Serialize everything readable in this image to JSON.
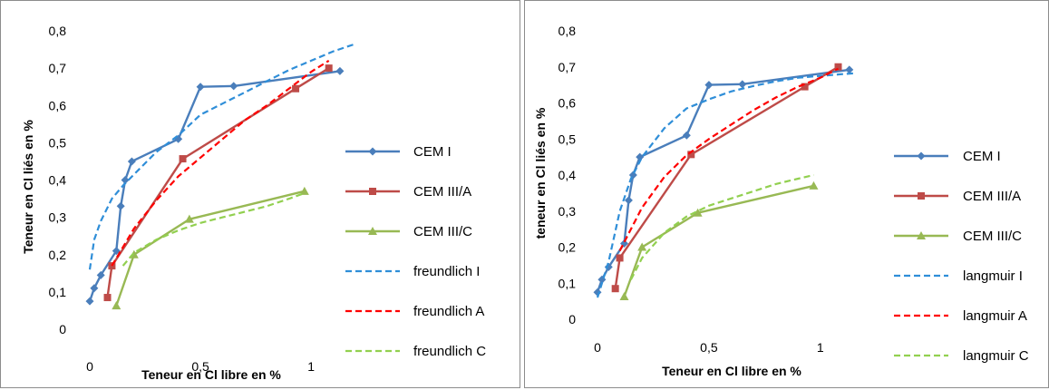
{
  "chart_data": [
    {
      "type": "line",
      "xlabel": "Teneur en Cl libre en %",
      "ylabel": "Teneur en Cl liés en %",
      "xlim": [
        0,
        1.2
      ],
      "ylim": [
        0,
        0.8
      ],
      "x_ticks": [
        "0",
        "0,5",
        "1"
      ],
      "y_ticks": [
        "0",
        "0,1",
        "0,2",
        "0,3",
        "0,4",
        "0,5",
        "0,6",
        "0,7",
        "0,8"
      ],
      "grid": false,
      "legend_position": "right",
      "series": [
        {
          "name": "CEM I",
          "color": "#4a7ebb",
          "style": "solid",
          "marker": "diamond",
          "x": [
            0.0,
            0.02,
            0.05,
            0.12,
            0.14,
            0.16,
            0.19,
            0.4,
            0.5,
            0.65,
            1.13
          ],
          "y": [
            0.075,
            0.11,
            0.145,
            0.21,
            0.33,
            0.4,
            0.45,
            0.51,
            0.65,
            0.652,
            0.692
          ]
        },
        {
          "name": "CEM III/A",
          "color": "#be4b48",
          "style": "solid",
          "marker": "square",
          "x": [
            0.08,
            0.1,
            0.42,
            0.93,
            1.08
          ],
          "y": [
            0.085,
            0.17,
            0.457,
            0.645,
            0.7
          ]
        },
        {
          "name": "CEM III/C",
          "color": "#98b954",
          "style": "solid",
          "marker": "triangle",
          "x": [
            0.12,
            0.2,
            0.45,
            0.97
          ],
          "y": [
            0.063,
            0.2,
            0.295,
            0.37
          ]
        },
        {
          "name": "freundlich I",
          "color": "#2f8ed8",
          "style": "dashed",
          "marker": "none",
          "x": [
            0.0,
            0.02,
            0.05,
            0.1,
            0.15,
            0.2,
            0.3,
            0.4,
            0.5,
            0.6,
            0.7,
            0.8,
            0.9,
            1.0,
            1.1,
            1.2
          ],
          "y": [
            0.16,
            0.24,
            0.29,
            0.35,
            0.385,
            0.415,
            0.475,
            0.52,
            0.575,
            0.605,
            0.635,
            0.665,
            0.695,
            0.72,
            0.745,
            0.765
          ]
        },
        {
          "name": "freundlich A",
          "color": "#ff0000",
          "style": "dashed",
          "marker": "none",
          "x": [
            0.1,
            0.15,
            0.2,
            0.3,
            0.4,
            0.5,
            0.6,
            0.7,
            0.8,
            0.9,
            1.0,
            1.08
          ],
          "y": [
            0.17,
            0.22,
            0.27,
            0.345,
            0.41,
            0.46,
            0.51,
            0.56,
            0.6,
            0.645,
            0.69,
            0.72
          ]
        },
        {
          "name": "freundlich C",
          "color": "#92d050",
          "style": "dashed",
          "marker": "none",
          "x": [
            0.15,
            0.2,
            0.3,
            0.4,
            0.5,
            0.6,
            0.7,
            0.8,
            0.9,
            0.97
          ],
          "y": [
            0.17,
            0.205,
            0.24,
            0.265,
            0.285,
            0.3,
            0.315,
            0.33,
            0.35,
            0.365
          ]
        }
      ]
    },
    {
      "type": "line",
      "xlabel": "Teneur en Cl libre en %",
      "ylabel": "teneur en Cl liés en %",
      "xlim": [
        0,
        1.2
      ],
      "ylim": [
        0,
        0.8
      ],
      "x_ticks": [
        "0",
        "0,5",
        "1"
      ],
      "y_ticks": [
        "0",
        "0,1",
        "0,2",
        "0,3",
        "0,4",
        "0,5",
        "0,6",
        "0,7",
        "0,8"
      ],
      "grid": false,
      "legend_position": "right",
      "series": [
        {
          "name": "CEM I",
          "color": "#4a7ebb",
          "style": "solid",
          "marker": "diamond",
          "x": [
            0.0,
            0.02,
            0.05,
            0.12,
            0.14,
            0.16,
            0.19,
            0.4,
            0.5,
            0.65,
            1.13
          ],
          "y": [
            0.075,
            0.11,
            0.145,
            0.21,
            0.33,
            0.4,
            0.45,
            0.51,
            0.65,
            0.652,
            0.692
          ]
        },
        {
          "name": "CEM III/A",
          "color": "#be4b48",
          "style": "solid",
          "marker": "square",
          "x": [
            0.08,
            0.1,
            0.42,
            0.93,
            1.08
          ],
          "y": [
            0.085,
            0.17,
            0.457,
            0.645,
            0.7
          ]
        },
        {
          "name": "CEM III/C",
          "color": "#98b954",
          "style": "solid",
          "marker": "triangle",
          "x": [
            0.12,
            0.2,
            0.45,
            0.97
          ],
          "y": [
            0.063,
            0.2,
            0.295,
            0.37
          ]
        },
        {
          "name": "langmuir I",
          "color": "#2f8ed8",
          "style": "dashed",
          "marker": "none",
          "x": [
            0.0,
            0.02,
            0.05,
            0.1,
            0.15,
            0.2,
            0.3,
            0.4,
            0.5,
            0.6,
            0.7,
            0.8,
            0.9,
            1.0,
            1.1,
            1.15
          ],
          "y": [
            0.06,
            0.1,
            0.16,
            0.3,
            0.39,
            0.45,
            0.53,
            0.585,
            0.61,
            0.632,
            0.647,
            0.66,
            0.67,
            0.675,
            0.68,
            0.682
          ]
        },
        {
          "name": "langmuir A",
          "color": "#ff0000",
          "style": "dashed",
          "marker": "none",
          "x": [
            0.1,
            0.15,
            0.2,
            0.3,
            0.4,
            0.5,
            0.6,
            0.7,
            0.8,
            0.9,
            1.0,
            1.08
          ],
          "y": [
            0.19,
            0.25,
            0.31,
            0.395,
            0.455,
            0.5,
            0.54,
            0.58,
            0.615,
            0.645,
            0.67,
            0.695
          ]
        },
        {
          "name": "langmuir C",
          "color": "#92d050",
          "style": "dashed",
          "marker": "none",
          "x": [
            0.15,
            0.2,
            0.3,
            0.4,
            0.5,
            0.6,
            0.7,
            0.8,
            0.9,
            0.97
          ],
          "y": [
            0.11,
            0.17,
            0.24,
            0.285,
            0.315,
            0.335,
            0.355,
            0.375,
            0.39,
            0.4
          ]
        }
      ]
    }
  ]
}
